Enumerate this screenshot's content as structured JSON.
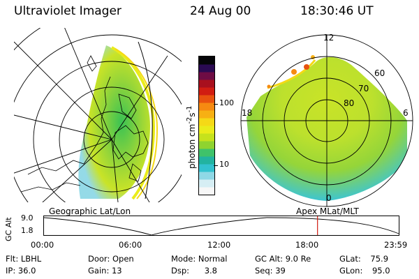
{
  "header": {
    "title": "Ultraviolet Imager",
    "date": "24 Aug 00",
    "time": "18:30:46 UT"
  },
  "left_panel": {
    "caption": "Geographic Lat/Lon"
  },
  "right_panel": {
    "caption": "Apex MLat/MLT",
    "mlt_labels": [
      "12",
      "18",
      "6",
      "0"
    ],
    "lat_labels": [
      "60",
      "70",
      "80"
    ]
  },
  "colorbar": {
    "ticks": [
      "100",
      "10"
    ],
    "unit_main": "photon cm",
    "unit_exp1": "-2",
    "unit_s": "s",
    "unit_exp2": "-1",
    "colors": [
      "#f7f7f7",
      "#d6eef4",
      "#8fd8e6",
      "#33c2cf",
      "#22b3a0",
      "#3fc26a",
      "#8fd32f",
      "#c6e21c",
      "#eaec1a",
      "#f5d916",
      "#f7b013",
      "#f68a11",
      "#e8520f",
      "#d11d12",
      "#a8101e",
      "#6e0c44",
      "#2a0a52",
      "#050508"
    ]
  },
  "timeline": {
    "axis_label": "GC Alt",
    "y_max": "9.0",
    "y_min": "1.8",
    "x_ticks": [
      "00:00",
      "06:00",
      "12:00",
      "18:00",
      "23:59"
    ],
    "current_time_fraction": 0.771
  },
  "info": {
    "flt_label": "Flt:",
    "flt_value": "LBHL",
    "ip_label": "IP:",
    "ip_value": "36.0",
    "door_label": "Door:",
    "door_value": "Open",
    "gain_label": "Gain:",
    "gain_value": "13",
    "mode_label": "Mode:",
    "mode_value": "Normal",
    "dsp_label": "Dsp:",
    "dsp_value": "3.8",
    "gcalt_label": "GC Alt:",
    "gcalt_value": "9.0 Re",
    "seq_label": "Seq:",
    "seq_value": "39",
    "glat_label": "GLat:",
    "glat_value": "75.9",
    "glon_label": "GLon:",
    "glon_value": "95.0"
  }
}
